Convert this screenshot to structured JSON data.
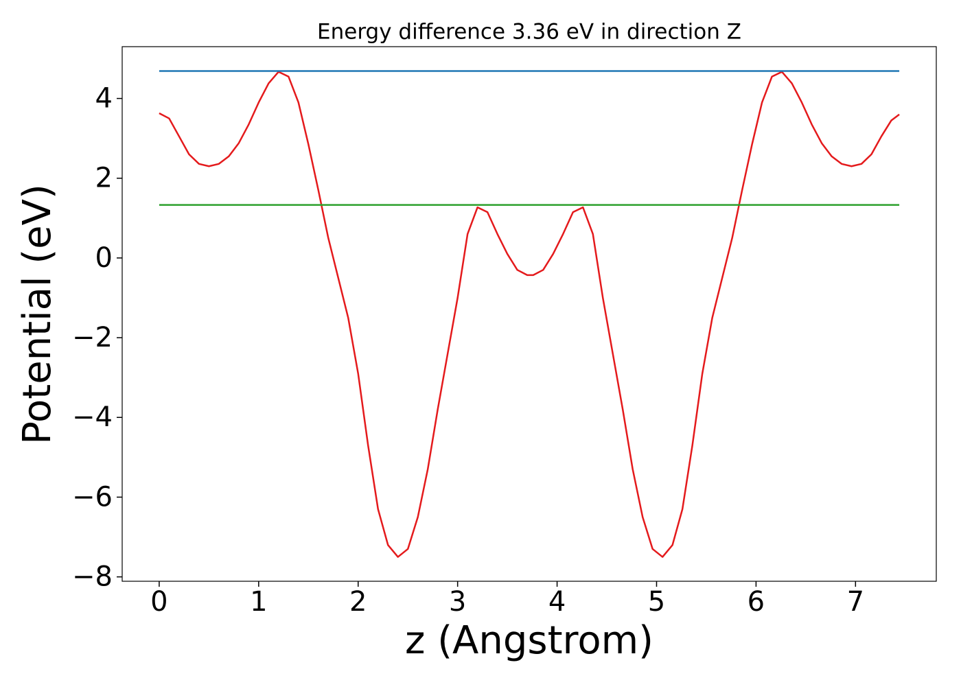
{
  "chart_data": {
    "type": "line",
    "title": "Energy difference 3.36 eV in direction Z",
    "xlabel": "z (Angstrom)",
    "ylabel": "Potential (eV)",
    "xlim": [
      -0.372,
      7.812
    ],
    "ylim": [
      -8.11,
      5.3
    ],
    "xticks": [
      0,
      1,
      2,
      3,
      4,
      5,
      6,
      7
    ],
    "yticks": [
      {
        "value": -8,
        "label": "−8"
      },
      {
        "value": -6,
        "label": "−6"
      },
      {
        "value": -4,
        "label": "−4"
      },
      {
        "value": -2,
        "label": "−2"
      },
      0,
      2,
      4
    ],
    "grid": false,
    "series": [
      {
        "color": "#e41a1c",
        "x": [
          0,
          0.1,
          0.2,
          0.3,
          0.4,
          0.5,
          0.6,
          0.7,
          0.8,
          0.9,
          1.0,
          1.1,
          1.2,
          1.3,
          1.4,
          1.5,
          1.6,
          1.7,
          1.8,
          1.9,
          2.0,
          2.1,
          2.2,
          2.3,
          2.4,
          2.5,
          2.6,
          2.7,
          2.8,
          2.9,
          3.0,
          3.1,
          3.2,
          3.3,
          3.4,
          3.5,
          3.6,
          3.7,
          3.76,
          3.86,
          3.96,
          4.06,
          4.16,
          4.26,
          4.36,
          4.46,
          4.56,
          4.66,
          4.76,
          4.86,
          4.96,
          5.06,
          5.16,
          5.26,
          5.36,
          5.46,
          5.56,
          5.66,
          5.76,
          5.86,
          5.96,
          6.06,
          6.16,
          6.26,
          6.36,
          6.46,
          6.56,
          6.66,
          6.76,
          6.86,
          6.96,
          7.06,
          7.16,
          7.26,
          7.36,
          7.44
        ],
        "values": [
          3.63,
          3.5,
          3.05,
          2.6,
          2.36,
          2.3,
          2.36,
          2.55,
          2.88,
          3.35,
          3.9,
          4.38,
          4.67,
          4.55,
          3.9,
          2.85,
          1.7,
          0.5,
          -0.5,
          -1.5,
          -2.9,
          -4.7,
          -6.3,
          -7.2,
          -7.5,
          -7.3,
          -6.5,
          -5.3,
          -3.8,
          -2.4,
          -1.0,
          0.6,
          1.27,
          1.15,
          0.6,
          0.1,
          -0.3,
          -0.43,
          -0.43,
          -0.3,
          0.1,
          0.6,
          1.15,
          1.27,
          0.6,
          -1.0,
          -2.4,
          -3.8,
          -5.3,
          -6.5,
          -7.3,
          -7.5,
          -7.2,
          -6.3,
          -4.7,
          -2.9,
          -1.5,
          -0.5,
          0.5,
          1.7,
          2.85,
          3.9,
          4.55,
          4.67,
          4.38,
          3.9,
          3.35,
          2.88,
          2.55,
          2.36,
          2.3,
          2.36,
          2.6,
          3.05,
          3.45,
          3.6
        ]
      },
      {
        "color": "#1f77b4",
        "x": [
          0,
          7.44
        ],
        "values": [
          4.69,
          4.69
        ]
      },
      {
        "color": "#2ca02c",
        "x": [
          0,
          7.44
        ],
        "values": [
          1.33,
          1.33
        ]
      }
    ]
  }
}
